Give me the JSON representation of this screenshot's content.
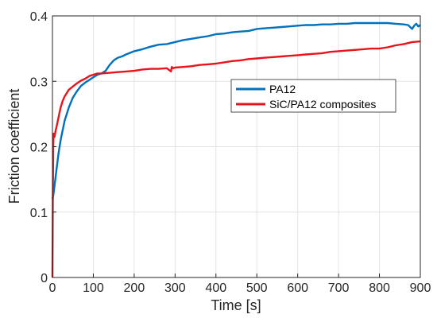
{
  "chart_data": {
    "type": "line",
    "xlabel": "Time [s]",
    "ylabel": "Friction coefficient",
    "xlim": [
      0,
      900
    ],
    "ylim": [
      0,
      0.4
    ],
    "xticks": [
      0,
      100,
      200,
      300,
      400,
      500,
      600,
      700,
      800,
      900
    ],
    "yticks": [
      0,
      0.1,
      0.2,
      0.3,
      0.4
    ],
    "xtick_labels": [
      "0",
      "100",
      "200",
      "300",
      "400",
      "500",
      "600",
      "700",
      "800",
      "900"
    ],
    "ytick_labels": [
      "0",
      "0.1",
      "0.2",
      "0.3",
      "0.4"
    ],
    "grid": true,
    "legend_position": "top-right (inside, upper middle-right)",
    "series": [
      {
        "name": "PA12",
        "color": "#0072BD",
        "x": [
          0,
          2,
          5,
          10,
          15,
          20,
          30,
          40,
          50,
          60,
          70,
          80,
          90,
          100,
          110,
          120,
          130,
          140,
          150,
          160,
          170,
          180,
          200,
          220,
          240,
          260,
          280,
          300,
          320,
          340,
          360,
          380,
          400,
          420,
          440,
          460,
          480,
          500,
          520,
          540,
          560,
          580,
          600,
          620,
          640,
          660,
          680,
          700,
          720,
          740,
          760,
          780,
          800,
          820,
          840,
          860,
          870,
          880,
          885,
          890,
          895,
          900
        ],
        "y": [
          0.12,
          0.125,
          0.14,
          0.165,
          0.19,
          0.21,
          0.24,
          0.26,
          0.275,
          0.285,
          0.293,
          0.298,
          0.302,
          0.306,
          0.31,
          0.312,
          0.316,
          0.325,
          0.332,
          0.336,
          0.338,
          0.341,
          0.346,
          0.349,
          0.353,
          0.356,
          0.357,
          0.36,
          0.363,
          0.365,
          0.367,
          0.369,
          0.372,
          0.373,
          0.375,
          0.376,
          0.377,
          0.38,
          0.381,
          0.382,
          0.383,
          0.384,
          0.385,
          0.386,
          0.386,
          0.387,
          0.387,
          0.388,
          0.388,
          0.389,
          0.389,
          0.389,
          0.389,
          0.389,
          0.388,
          0.387,
          0.386,
          0.38,
          0.385,
          0.388,
          0.384,
          0.386
        ]
      },
      {
        "name": "SiC/PA12 composites",
        "color": "#E8141B",
        "x": [
          0,
          1,
          2,
          3,
          5,
          8,
          10,
          15,
          20,
          25,
          30,
          40,
          50,
          60,
          70,
          80,
          90,
          100,
          110,
          120,
          140,
          160,
          180,
          200,
          220,
          240,
          260,
          280,
          290,
          292,
          295,
          300,
          320,
          340,
          360,
          380,
          400,
          420,
          440,
          460,
          480,
          500,
          520,
          540,
          560,
          580,
          600,
          620,
          640,
          660,
          680,
          700,
          720,
          740,
          760,
          780,
          800,
          820,
          840,
          860,
          880,
          900
        ],
        "y": [
          0.0,
          0.12,
          0.2,
          0.22,
          0.215,
          0.225,
          0.23,
          0.245,
          0.26,
          0.27,
          0.277,
          0.287,
          0.292,
          0.297,
          0.301,
          0.304,
          0.308,
          0.31,
          0.312,
          0.312,
          0.313,
          0.314,
          0.315,
          0.316,
          0.318,
          0.319,
          0.319,
          0.32,
          0.315,
          0.322,
          0.32,
          0.321,
          0.322,
          0.323,
          0.325,
          0.326,
          0.327,
          0.329,
          0.331,
          0.332,
          0.334,
          0.335,
          0.336,
          0.337,
          0.338,
          0.339,
          0.34,
          0.341,
          0.342,
          0.343,
          0.345,
          0.346,
          0.347,
          0.348,
          0.349,
          0.35,
          0.35,
          0.352,
          0.355,
          0.357,
          0.36,
          0.361
        ]
      }
    ]
  }
}
